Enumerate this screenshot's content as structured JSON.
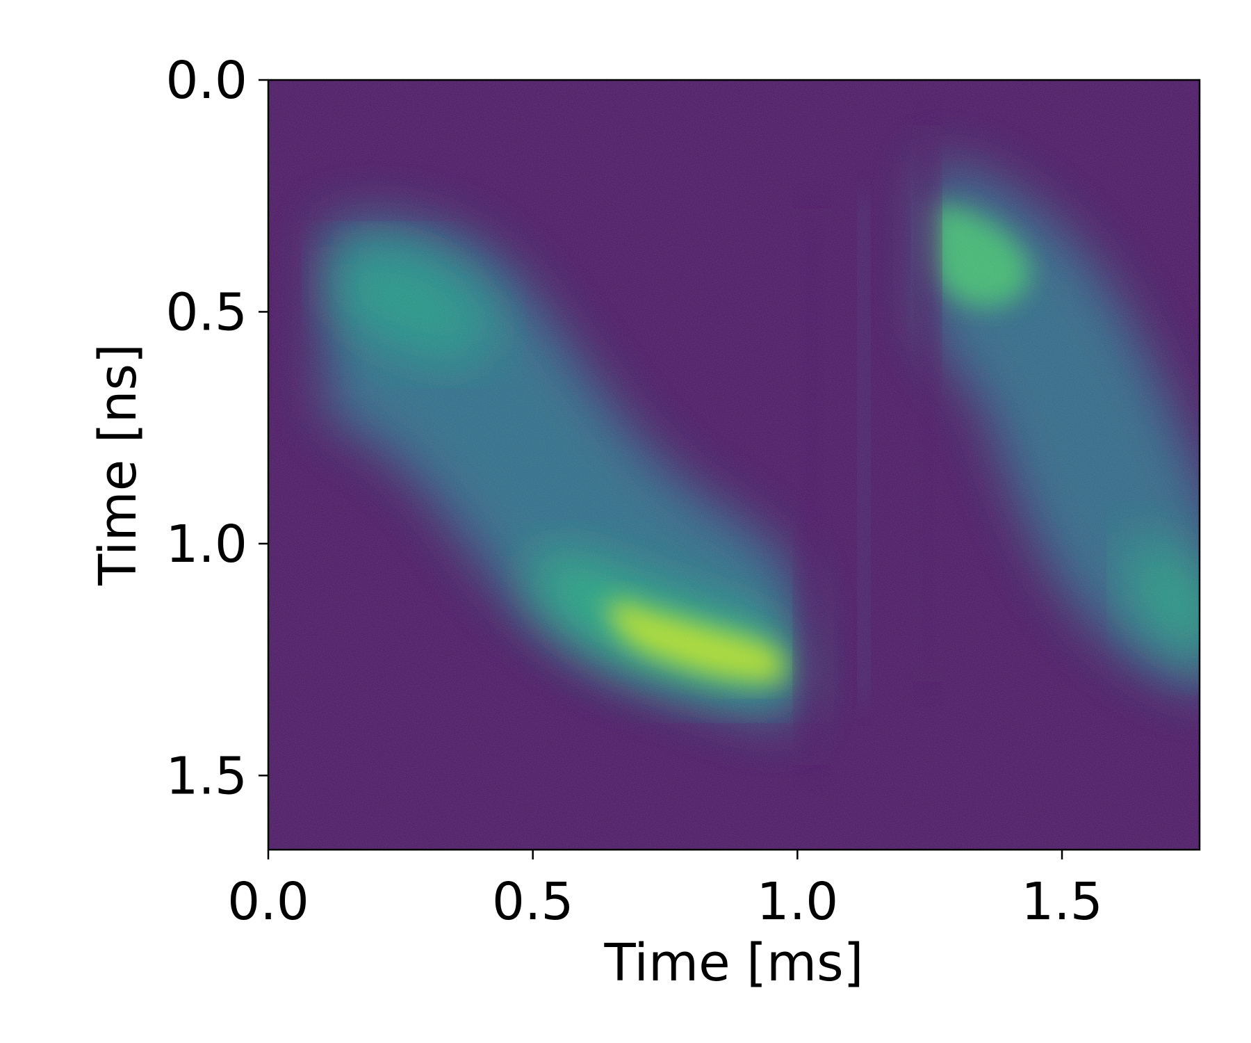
{
  "chart_data": {
    "type": "heatmap",
    "title": "",
    "xlabel": "Time [ms]",
    "ylabel": "Time [ns]",
    "xlim": [
      0.0,
      1.76
    ],
    "ylim": [
      1.66,
      0.0
    ],
    "y_inverted": true,
    "x_ticks": [
      {
        "value": 0.0,
        "label": "0.0"
      },
      {
        "value": 0.5,
        "label": "0.5"
      },
      {
        "value": 1.0,
        "label": "1.0"
      },
      {
        "value": 1.5,
        "label": "1.5"
      }
    ],
    "y_ticks": [
      {
        "value": 0.0,
        "label": "0.0"
      },
      {
        "value": 0.5,
        "label": "0.5"
      },
      {
        "value": 1.0,
        "label": "1.0"
      },
      {
        "value": 1.5,
        "label": "1.5"
      }
    ],
    "colormap": "viridis",
    "background_color": "#471467",
    "grid": false,
    "colorbar": false,
    "intensity_features": [
      {
        "name": "band-1-upper",
        "x": 0.35,
        "y": 0.5,
        "peak": 0.55
      },
      {
        "name": "band-1-lower",
        "x": 0.82,
        "y": 1.2,
        "peak": 0.85
      },
      {
        "name": "band-2-upper",
        "x": 1.33,
        "y": 0.38,
        "peak": 0.75
      },
      {
        "name": "band-2-lower",
        "x": 1.72,
        "y": 1.12,
        "peak": 0.55
      },
      {
        "name": "faint-streak",
        "x": 1.12,
        "y": 0.9,
        "peak": 0.12
      }
    ]
  }
}
